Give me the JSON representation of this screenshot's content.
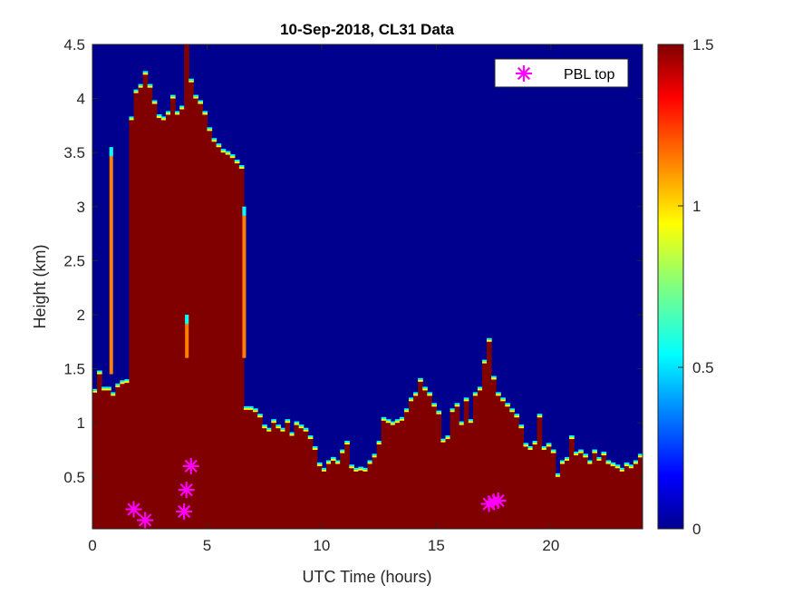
{
  "chart_data": {
    "type": "heatmap",
    "title": "10-Sep-2018, CL31 Data",
    "xlabel": "UTC Time (hours)",
    "ylabel": "Height (km)",
    "xlim": [
      0,
      24
    ],
    "ylim": [
      0.02,
      4.5
    ],
    "x_ticks": [
      0,
      5,
      10,
      15,
      20
    ],
    "y_ticks": [
      0.5,
      1,
      1.5,
      2,
      2.5,
      3,
      3.5,
      4,
      4.5
    ],
    "x_tick_labels": [
      "0",
      "5",
      "10",
      "15",
      "20"
    ],
    "y_tick_labels": [
      "0.5",
      "1",
      "1.5",
      "2",
      "2.5",
      "3",
      "3.5",
      "4",
      "4.5"
    ],
    "colorbar": {
      "range": [
        0,
        1.5
      ],
      "ticks": [
        0,
        0.5,
        1,
        1.5
      ],
      "tick_labels": [
        "0",
        "0.5",
        "1",
        "1.5"
      ],
      "colormap": "jet"
    },
    "background_color": "#00008F",
    "layer_color": "#800000",
    "layer_top_km": {
      "time_hours": [
        0,
        0.2,
        0.4,
        0.6,
        0.8,
        1.0,
        1.2,
        1.4,
        1.6,
        1.8,
        2.0,
        2.2,
        2.4,
        2.6,
        2.8,
        3.0,
        3.2,
        3.4,
        3.6,
        3.8,
        4.0,
        4.2,
        4.4,
        4.6,
        4.8,
        5.0,
        5.2,
        5.4,
        5.6,
        5.8,
        6.0,
        6.2,
        6.4,
        6.6,
        6.8,
        7.0,
        7.2,
        7.4,
        7.6,
        7.8,
        8.0,
        8.2,
        8.4,
        8.6,
        8.8,
        9.0,
        9.2,
        9.4,
        9.6,
        9.8,
        10.0,
        10.2,
        10.4,
        10.6,
        10.8,
        11.0,
        11.2,
        11.4,
        11.6,
        11.8,
        12.0,
        12.2,
        12.4,
        12.6,
        12.8,
        13.0,
        13.2,
        13.4,
        13.6,
        13.8,
        14.0,
        14.2,
        14.4,
        14.6,
        14.8,
        15.0,
        15.2,
        15.4,
        15.6,
        15.8,
        16.0,
        16.2,
        16.4,
        16.6,
        16.8,
        17.0,
        17.2,
        17.4,
        17.6,
        17.8,
        18.0,
        18.2,
        18.4,
        18.6,
        18.8,
        19.0,
        19.2,
        19.4,
        19.6,
        19.8,
        20.0,
        20.2,
        20.4,
        20.6,
        20.8,
        21.0,
        21.2,
        21.4,
        21.6,
        21.8,
        22.0,
        22.2,
        22.4,
        22.6,
        22.8,
        23.0,
        23.2,
        23.4,
        23.6,
        23.8
      ],
      "height_km": [
        1.28,
        1.45,
        1.3,
        1.3,
        1.25,
        1.33,
        1.36,
        1.37,
        3.8,
        4.05,
        4.1,
        4.22,
        4.1,
        3.95,
        3.82,
        3.8,
        3.85,
        4.0,
        3.85,
        3.9,
        4.5,
        4.15,
        4.0,
        3.95,
        3.85,
        3.7,
        3.6,
        3.55,
        3.5,
        3.48,
        3.45,
        3.4,
        3.35,
        1.12,
        1.12,
        1.1,
        1.05,
        0.95,
        0.92,
        1.0,
        0.95,
        0.92,
        1.0,
        0.88,
        0.98,
        0.95,
        0.92,
        0.85,
        0.75,
        0.6,
        0.55,
        0.62,
        0.65,
        0.62,
        0.72,
        0.8,
        0.58,
        0.55,
        0.56,
        0.55,
        0.62,
        0.68,
        0.8,
        1.02,
        1.0,
        0.98,
        1.0,
        1.02,
        1.1,
        1.2,
        1.25,
        1.38,
        1.3,
        1.25,
        1.15,
        1.08,
        0.82,
        0.85,
        1.1,
        1.15,
        0.98,
        1.2,
        1.0,
        1.25,
        1.3,
        1.55,
        1.75,
        1.4,
        1.25,
        1.2,
        1.15,
        1.1,
        1.05,
        0.95,
        0.78,
        0.75,
        0.8,
        1.05,
        0.75,
        0.78,
        0.72,
        0.5,
        0.62,
        0.65,
        0.85,
        0.7,
        0.72,
        0.68,
        0.62,
        0.72,
        0.65,
        0.7,
        0.62,
        0.6,
        0.58,
        0.55,
        0.6,
        0.58,
        0.62,
        0.68
      ]
    },
    "thin_layers": [
      {
        "x": 0.8,
        "y0": 1.45,
        "y1": 3.55
      },
      {
        "x": 4.1,
        "y0": 1.6,
        "y1": 2.0
      },
      {
        "x": 6.6,
        "y0": 1.6,
        "y1": 3.0
      }
    ],
    "series": [
      {
        "name": "PBL top",
        "marker": "asterisk",
        "color": "#FF00FF",
        "x": [
          1.8,
          2.3,
          4.0,
          4.1,
          4.3,
          17.3,
          17.5,
          17.7
        ],
        "y": [
          0.2,
          0.1,
          0.18,
          0.38,
          0.6,
          0.25,
          0.27,
          0.28
        ]
      }
    ],
    "legend": {
      "position": "top-right",
      "entries": [
        "PBL top"
      ]
    }
  }
}
